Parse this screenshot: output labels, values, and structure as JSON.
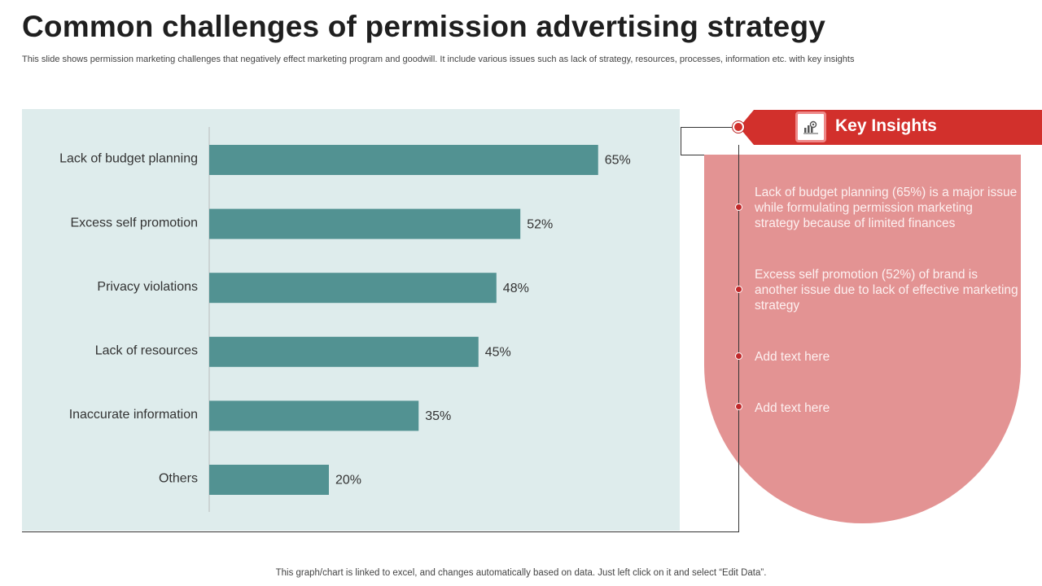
{
  "slide": {
    "title": "Common challenges of permission advertising strategy",
    "subtitle": "This slide shows permission marketing challenges that negatively effect marketing program and goodwill. It include various issues such as lack of strategy, resources, processes, information etc. with key insights",
    "footer": "This graph/chart is linked to excel, and changes automatically based on data. Just left click on it and select “Edit Data”."
  },
  "chart_data": {
    "type": "bar",
    "orientation": "horizontal",
    "categories": [
      "Lack of budget  planning",
      "Excess self promotion",
      "Privacy violations",
      "Lack of resources",
      "Inaccurate information",
      "Others"
    ],
    "values": [
      65,
      52,
      48,
      45,
      35,
      20
    ],
    "value_labels": [
      "65%",
      "52%",
      "48%",
      "45%",
      "35%",
      "20%"
    ],
    "xlim": [
      0,
      100
    ],
    "grid": false,
    "bar_color": "#529292",
    "background_color": "#deecec"
  },
  "insights": {
    "title": "Key Insights",
    "icon": "chart-insight-icon",
    "accent_color": "#d2302c",
    "panel_color": "#e39393",
    "items": [
      "Lack of budget planning (65%) is a major issue while formulating  permission marketing strategy because of limited finances",
      "Excess self promotion (52%) of brand is another issue due to lack of effective marketing strategy",
      "Add text here",
      "Add text here"
    ]
  }
}
